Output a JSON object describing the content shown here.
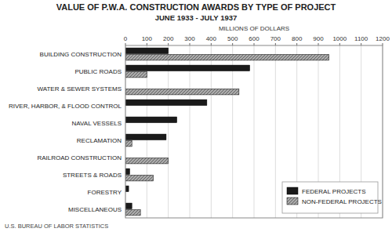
{
  "chart_data": {
    "type": "bar",
    "orientation": "horizontal",
    "title": "VALUE OF P.W.A. CONSTRUCTION AWARDS BY TYPE OF PROJECT",
    "subtitle": "JUNE 1933 - JULY 1937",
    "x_label": "MILLIONS OF DOLLARS",
    "annotations": [
      "U.S. BUREAU OF LABOR STATISTICS"
    ],
    "categories": [
      "BUILDING CONSTRUCTION",
      "PUBLIC ROADS",
      "WATER & SEWER SYSTEMS",
      "RIVER, HARBOR, & FLOOD CONTROL",
      "NAVAL VESSELS",
      "RECLAMATION",
      "RAILROAD CONSTRUCTION",
      "STREETS & ROADS",
      "FORESTRY",
      "MISCELLANEOUS"
    ],
    "series": [
      {
        "name": "FEDERAL PROJECTS",
        "color": "#1a1a1a",
        "values": [
          200,
          580,
          0,
          380,
          240,
          190,
          0,
          20,
          15,
          30
        ]
      },
      {
        "name": "NON-FEDERAL PROJECTS",
        "color": "#aaaaaa",
        "values": [
          950,
          100,
          530,
          0,
          0,
          30,
          200,
          130,
          0,
          70
        ]
      }
    ],
    "xlim": [
      0,
      1200
    ],
    "xticks": [
      0,
      100,
      200,
      300,
      400,
      500,
      600,
      700,
      800,
      900,
      1000,
      1100,
      1200
    ],
    "grid": true,
    "legend": "lower right"
  }
}
